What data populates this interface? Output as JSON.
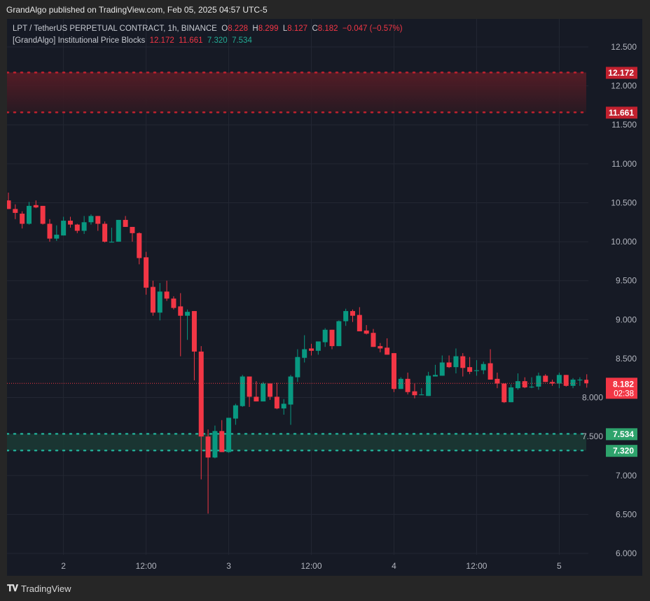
{
  "publisher_line": "GrandAlgo published on TradingView.com, Feb 05, 2025 04:57 UTC-5",
  "legend": {
    "symbol": "LPT / TetherUS PERPETUAL CONTRACT, 1h, BINANCE",
    "o_label": "O",
    "o": "8.228",
    "h_label": "H",
    "h": "8.299",
    "l_label": "L",
    "l": "8.127",
    "c_label": "C",
    "c": "8.182",
    "change": "−0.047 (−0.57%)",
    "indicator": "[GrandAlgo] Institutional Price Blocks",
    "ind_values": [
      "12.172",
      "11.661",
      "7.320",
      "7.534"
    ]
  },
  "footer": {
    "brand": "TradingView",
    "logo_text": "TV"
  },
  "colors": {
    "up": "#089981",
    "down": "#f23645",
    "bear_zone": "#c2212f",
    "bull_zone": "#22ab94",
    "bull_label": "#2ea36c",
    "background": "#161a25"
  },
  "chart_data": {
    "type": "candlestick",
    "interval": "1h",
    "ylim": [
      6.0,
      12.5
    ],
    "yticks": [
      "12.500",
      "12.000",
      "11.500",
      "11.000",
      "10.500",
      "10.000",
      "9.500",
      "9.000",
      "8.500",
      "8.000",
      "7.500",
      "7.000",
      "6.500",
      "6.000"
    ],
    "xticks": [
      {
        "label": "2",
        "time": "2025-02-02 00:00"
      },
      {
        "label": "12:00",
        "time": "2025-02-02 12:00"
      },
      {
        "label": "3",
        "time": "2025-02-03 00:00"
      },
      {
        "label": "12:00",
        "time": "2025-02-03 12:00"
      },
      {
        "label": "4",
        "time": "2025-02-04 00:00"
      },
      {
        "label": "12:00",
        "time": "2025-02-04 12:00"
      },
      {
        "label": "5",
        "time": "2025-02-05 00:00"
      }
    ],
    "grid": true,
    "last_price": {
      "value": "8.182",
      "countdown": "02:38"
    },
    "zones": [
      {
        "type": "bearish",
        "top": 12.172,
        "bottom": 11.661,
        "top_label": "12.172",
        "bottom_label": "11.661"
      },
      {
        "type": "bullish",
        "top": 7.534,
        "bottom": 7.32,
        "top_label": "7.534",
        "bottom_label": "7.320"
      }
    ],
    "candles_columns": [
      "time",
      "open",
      "high",
      "low",
      "close"
    ],
    "candles": [
      [
        "2025-02-01 16:00",
        10.53,
        10.63,
        10.42,
        10.42
      ],
      [
        "2025-02-01 17:00",
        10.42,
        10.48,
        10.29,
        10.37
      ],
      [
        "2025-02-01 18:00",
        10.36,
        10.39,
        10.17,
        10.23
      ],
      [
        "2025-02-01 19:00",
        10.23,
        10.51,
        10.22,
        10.46
      ],
      [
        "2025-02-01 20:00",
        10.47,
        10.53,
        10.43,
        10.44
      ],
      [
        "2025-02-01 21:00",
        10.46,
        10.46,
        10.22,
        10.23
      ],
      [
        "2025-02-01 22:00",
        10.23,
        10.29,
        10.0,
        10.04
      ],
      [
        "2025-02-01 23:00",
        10.04,
        10.21,
        10.01,
        10.09
      ],
      [
        "2025-02-02 00:00",
        10.08,
        10.32,
        10.08,
        10.27
      ],
      [
        "2025-02-02 01:00",
        10.27,
        10.32,
        10.18,
        10.22
      ],
      [
        "2025-02-02 02:00",
        10.22,
        10.23,
        10.11,
        10.14
      ],
      [
        "2025-02-02 03:00",
        10.14,
        10.33,
        10.1,
        10.25
      ],
      [
        "2025-02-02 04:00",
        10.25,
        10.35,
        10.22,
        10.33
      ],
      [
        "2025-02-02 05:00",
        10.33,
        10.33,
        10.14,
        10.23
      ],
      [
        "2025-02-02 06:00",
        10.23,
        10.26,
        9.99,
        10.0
      ],
      [
        "2025-02-02 07:00",
        9.99,
        10.18,
        9.99,
        10.0
      ],
      [
        "2025-02-02 08:00",
        10.0,
        10.28,
        10.0,
        10.28
      ],
      [
        "2025-02-02 09:00",
        10.28,
        10.33,
        10.19,
        10.19
      ],
      [
        "2025-02-02 10:00",
        10.19,
        10.19,
        10.0,
        10.11
      ],
      [
        "2025-02-02 11:00",
        10.11,
        10.12,
        9.71,
        9.79
      ],
      [
        "2025-02-02 12:00",
        9.8,
        9.87,
        9.32,
        9.41
      ],
      [
        "2025-02-02 13:00",
        9.42,
        9.5,
        9.05,
        9.09
      ],
      [
        "2025-02-02 14:00",
        9.09,
        9.47,
        8.99,
        9.36
      ],
      [
        "2025-02-02 15:00",
        9.36,
        9.5,
        9.24,
        9.27
      ],
      [
        "2025-02-02 16:00",
        9.27,
        9.3,
        9.13,
        9.15
      ],
      [
        "2025-02-02 17:00",
        9.17,
        9.34,
        8.53,
        9.05
      ],
      [
        "2025-02-02 18:00",
        9.05,
        9.13,
        8.74,
        9.1
      ],
      [
        "2025-02-02 19:00",
        9.11,
        9.11,
        8.22,
        8.59
      ],
      [
        "2025-02-02 20:00",
        8.59,
        8.66,
        6.95,
        7.5
      ],
      [
        "2025-02-02 21:00",
        7.5,
        7.59,
        6.51,
        7.23
      ],
      [
        "2025-02-02 22:00",
        7.23,
        7.64,
        7.22,
        7.57
      ],
      [
        "2025-02-02 23:00",
        7.57,
        7.71,
        7.3,
        7.3
      ],
      [
        "2025-02-03 00:00",
        7.3,
        7.74,
        7.29,
        7.74
      ],
      [
        "2025-02-03 01:00",
        7.73,
        7.92,
        7.65,
        7.9
      ],
      [
        "2025-02-03 02:00",
        7.89,
        8.29,
        7.88,
        8.27
      ],
      [
        "2025-02-03 03:00",
        8.27,
        8.27,
        7.88,
        8.01
      ],
      [
        "2025-02-03 04:00",
        8.01,
        8.21,
        7.95,
        7.95
      ],
      [
        "2025-02-03 05:00",
        7.95,
        8.2,
        7.95,
        8.18
      ],
      [
        "2025-02-03 06:00",
        8.18,
        8.18,
        7.97,
        8.01
      ],
      [
        "2025-02-03 07:00",
        8.01,
        8.19,
        7.85,
        7.86
      ],
      [
        "2025-02-03 08:00",
        7.86,
        7.98,
        7.78,
        7.92
      ],
      [
        "2025-02-03 09:00",
        7.91,
        8.29,
        7.65,
        8.27
      ],
      [
        "2025-02-03 10:00",
        8.26,
        8.62,
        8.2,
        8.52
      ],
      [
        "2025-02-03 11:00",
        8.51,
        8.8,
        8.45,
        8.62
      ],
      [
        "2025-02-03 12:00",
        8.63,
        8.69,
        8.54,
        8.6
      ],
      [
        "2025-02-03 13:00",
        8.6,
        8.72,
        8.55,
        8.72
      ],
      [
        "2025-02-03 14:00",
        8.71,
        8.89,
        8.65,
        8.87
      ],
      [
        "2025-02-03 15:00",
        8.87,
        8.87,
        8.62,
        8.66
      ],
      [
        "2025-02-03 16:00",
        8.66,
        8.99,
        8.66,
        8.98
      ],
      [
        "2025-02-03 17:00",
        8.98,
        9.14,
        8.92,
        9.11
      ],
      [
        "2025-02-03 18:00",
        9.11,
        9.13,
        8.97,
        9.05
      ],
      [
        "2025-02-03 19:00",
        9.06,
        9.16,
        8.85,
        8.85
      ],
      [
        "2025-02-03 20:00",
        8.86,
        8.93,
        8.81,
        8.82
      ],
      [
        "2025-02-03 21:00",
        8.83,
        8.88,
        8.65,
        8.65
      ],
      [
        "2025-02-03 22:00",
        8.66,
        8.7,
        8.58,
        8.63
      ],
      [
        "2025-02-03 23:00",
        8.64,
        8.76,
        8.55,
        8.55
      ],
      [
        "2025-02-04 00:00",
        8.57,
        8.57,
        8.07,
        8.11
      ],
      [
        "2025-02-04 01:00",
        8.11,
        8.26,
        8.11,
        8.24
      ],
      [
        "2025-02-04 02:00",
        8.24,
        8.32,
        8.04,
        8.07
      ],
      [
        "2025-02-04 03:00",
        8.08,
        8.18,
        7.99,
        8.03
      ],
      [
        "2025-02-04 04:00",
        8.03,
        8.12,
        8.03,
        8.04
      ],
      [
        "2025-02-04 05:00",
        8.02,
        8.33,
        8.02,
        8.28
      ],
      [
        "2025-02-04 06:00",
        8.27,
        8.42,
        8.27,
        8.29
      ],
      [
        "2025-02-04 07:00",
        8.28,
        8.54,
        8.28,
        8.45
      ],
      [
        "2025-02-04 08:00",
        8.45,
        8.54,
        8.38,
        8.39
      ],
      [
        "2025-02-04 09:00",
        8.39,
        8.63,
        8.31,
        8.53
      ],
      [
        "2025-02-04 10:00",
        8.53,
        8.57,
        8.27,
        8.38
      ],
      [
        "2025-02-04 11:00",
        8.39,
        8.52,
        8.3,
        8.33
      ],
      [
        "2025-02-04 12:00",
        8.34,
        8.48,
        8.28,
        8.35
      ],
      [
        "2025-02-04 13:00",
        8.35,
        8.46,
        8.3,
        8.43
      ],
      [
        "2025-02-04 14:00",
        8.44,
        8.62,
        8.23,
        8.23
      ],
      [
        "2025-02-04 15:00",
        8.24,
        8.32,
        8.12,
        8.18
      ],
      [
        "2025-02-04 16:00",
        8.18,
        8.18,
        7.93,
        7.94
      ],
      [
        "2025-02-04 17:00",
        7.94,
        8.17,
        7.94,
        8.13
      ],
      [
        "2025-02-04 18:00",
        8.12,
        8.31,
        8.1,
        8.21
      ],
      [
        "2025-02-04 19:00",
        8.21,
        8.26,
        8.12,
        8.13
      ],
      [
        "2025-02-04 20:00",
        8.13,
        8.26,
        8.12,
        8.14
      ],
      [
        "2025-02-04 21:00",
        8.14,
        8.32,
        8.1,
        8.28
      ],
      [
        "2025-02-04 22:00",
        8.28,
        8.3,
        8.2,
        8.2
      ],
      [
        "2025-02-04 23:00",
        8.2,
        8.23,
        8.15,
        8.18
      ],
      [
        "2025-02-05 00:00",
        8.18,
        8.32,
        8.12,
        8.29
      ],
      [
        "2025-02-05 01:00",
        8.29,
        8.29,
        8.14,
        8.15
      ],
      [
        "2025-02-05 02:00",
        8.15,
        8.25,
        8.12,
        8.23
      ],
      [
        "2025-02-05 03:00",
        8.22,
        8.26,
        8.15,
        8.23
      ],
      [
        "2025-02-05 04:00",
        8.228,
        8.299,
        8.127,
        8.182
      ]
    ]
  }
}
